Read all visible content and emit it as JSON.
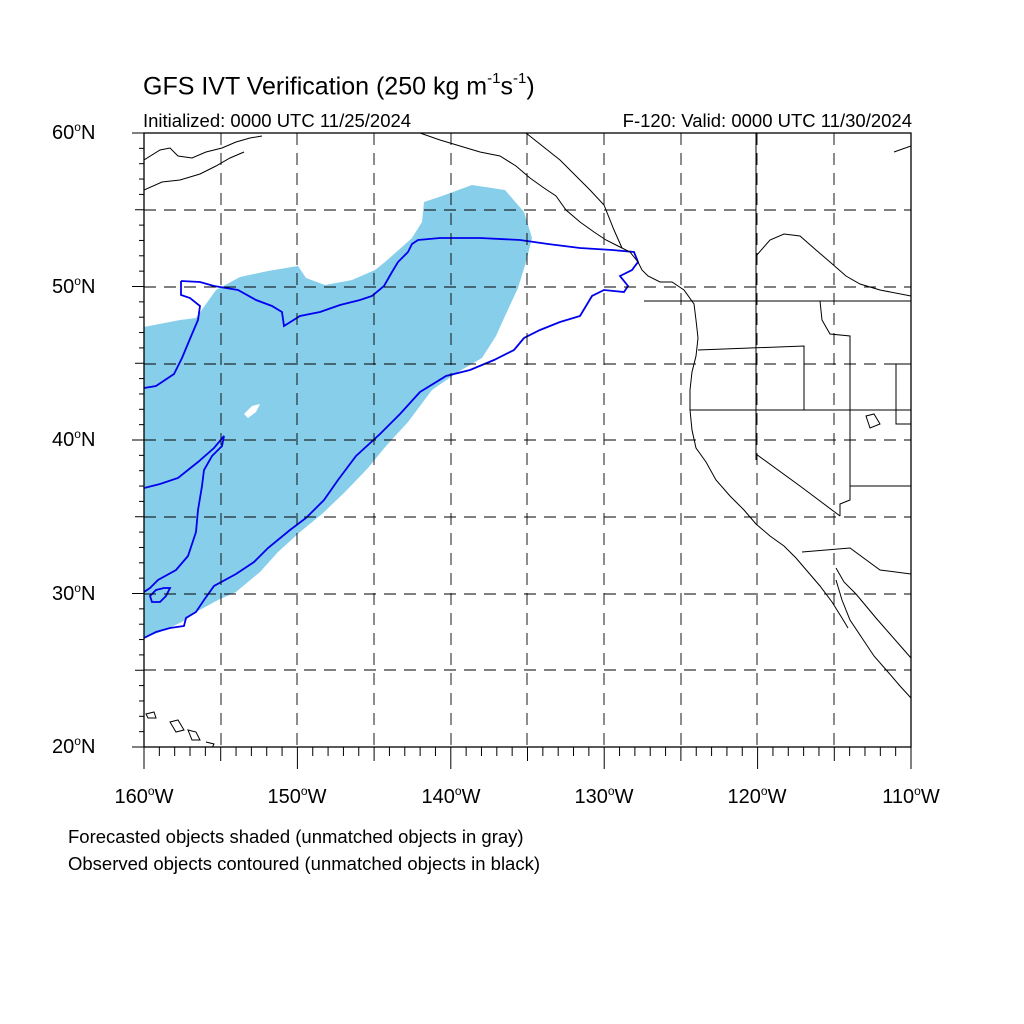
{
  "header": {
    "title_main": "GFS IVT Verification (250 kg m",
    "title_exp1": "-1",
    "title_mid": "s",
    "title_exp2": "-1",
    "title_end": ")",
    "initialized": "Initialized: 0000 UTC 11/25/2024",
    "valid": "F-120: Valid: 0000 UTC 11/30/2024"
  },
  "axes": {
    "degree_symbol": "o",
    "lat_labels": [
      {
        "num": "60",
        "hem": "N"
      },
      {
        "num": "50",
        "hem": "N"
      },
      {
        "num": "40",
        "hem": "N"
      },
      {
        "num": "30",
        "hem": "N"
      },
      {
        "num": "20",
        "hem": "N"
      }
    ],
    "lon_labels": [
      {
        "num": "160",
        "hem": "W"
      },
      {
        "num": "150",
        "hem": "W"
      },
      {
        "num": "140",
        "hem": "W"
      },
      {
        "num": "130",
        "hem": "W"
      },
      {
        "num": "120",
        "hem": "W"
      },
      {
        "num": "110",
        "hem": "W"
      }
    ],
    "lat_range": [
      20,
      60
    ],
    "lon_range": [
      -160,
      -110
    ],
    "grid": "dashed every 5 degrees"
  },
  "legend": {
    "line1": "Forecasted objects shaded (unmatched objects in gray)",
    "line2": "Observed objects contoured (unmatched objects in black)"
  },
  "colors": {
    "forecast_fill": "#87CEEB",
    "observed_contour": "#0000EE",
    "coastline": "#000000",
    "grid": "#000000"
  }
}
